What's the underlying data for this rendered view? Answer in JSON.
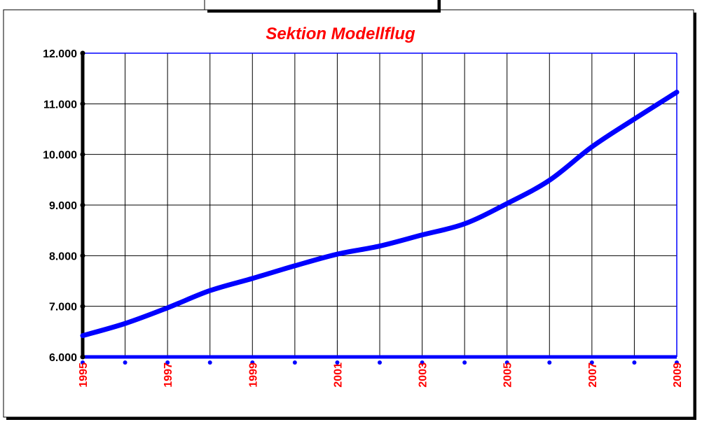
{
  "chart_data": {
    "type": "line",
    "title": "Sektion Modellflug",
    "x": [
      1995,
      1996,
      1997,
      1998,
      1999,
      2000,
      2001,
      2002,
      2003,
      2004,
      2005,
      2006,
      2007,
      2008,
      2009
    ],
    "series": [
      {
        "color": "#0000ff",
        "values": [
          6420,
          6660,
          6970,
          7310,
          7550,
          7800,
          8030,
          8190,
          8410,
          8630,
          9030,
          9490,
          10150,
          10700,
          11230
        ]
      }
    ],
    "xlim": [
      1995,
      2009
    ],
    "xticks": [
      1995,
      1997,
      1999,
      2001,
      2003,
      2005,
      2007,
      2009
    ],
    "xminorticks": [
      1996,
      1998,
      2000,
      2002,
      2004,
      2006,
      2008
    ],
    "ylim": [
      6000,
      12000
    ],
    "yticks": [
      {
        "value": 6000,
        "label": "6.000"
      },
      {
        "value": 7000,
        "label": "7.000"
      },
      {
        "value": 8000,
        "label": "8.000"
      },
      {
        "value": 9000,
        "label": "9.000"
      },
      {
        "value": 10000,
        "label": "10.000"
      },
      {
        "value": 11000,
        "label": "11.000"
      },
      {
        "value": 12000,
        "label": "12.000"
      }
    ],
    "grid": true
  }
}
